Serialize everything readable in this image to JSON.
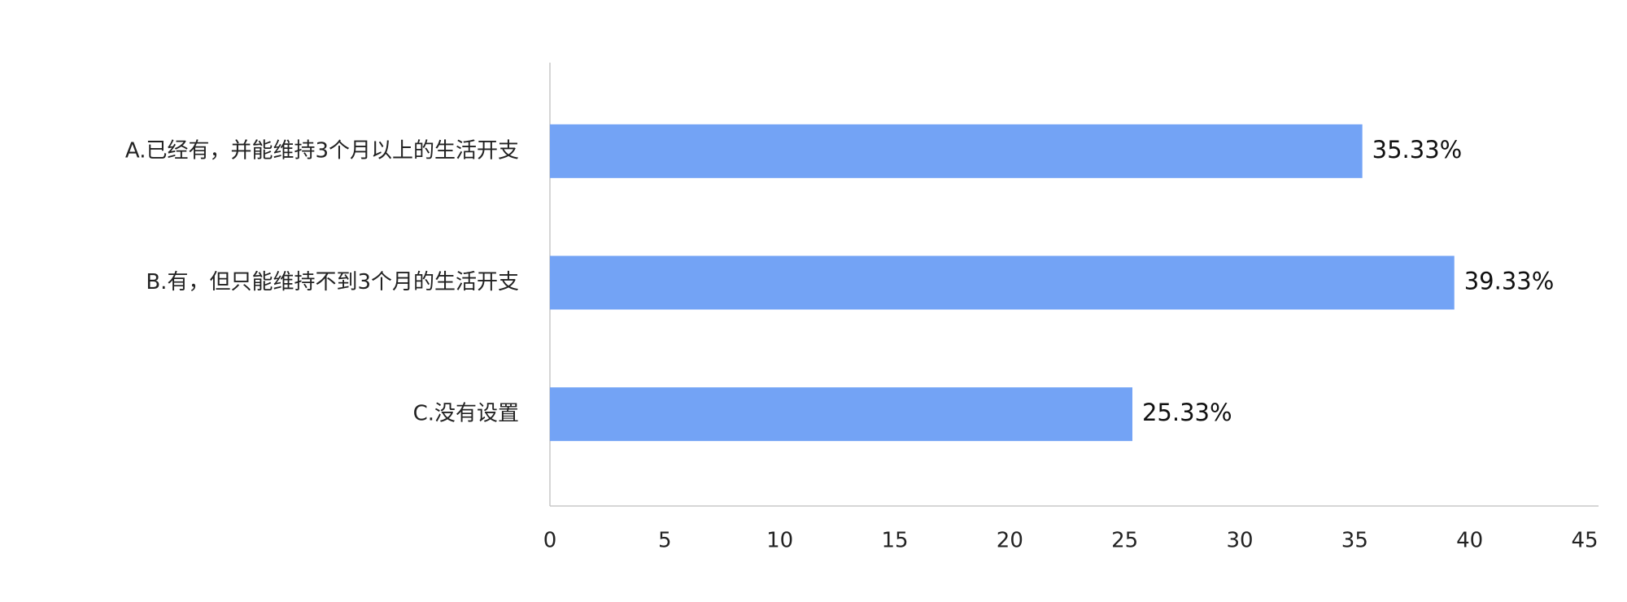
{
  "chart_data": {
    "type": "barh",
    "categories": [
      "A.已经有，并能维持3个月以上的生活开支",
      "B.有，但只能维持不到3个月的生活开支",
      "C.没有设置"
    ],
    "values": [
      35.33,
      39.33,
      25.33
    ],
    "value_labels": [
      "35.33%",
      "39.33%",
      "25.33%"
    ],
    "color": "#73a3f5",
    "xlim": [
      0,
      45
    ],
    "xticks": [
      0,
      5,
      10,
      15,
      20,
      25,
      30,
      35,
      40,
      45
    ],
    "grid": false
  }
}
